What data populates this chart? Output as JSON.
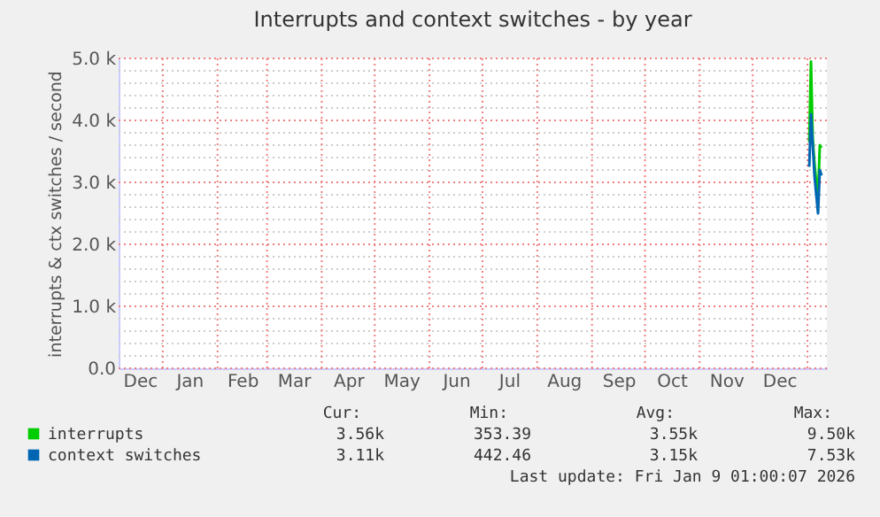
{
  "chart_data": {
    "type": "line",
    "title": "Interrupts and context switches - by year",
    "ylabel": "interrupts & ctx switches / second",
    "x": [
      "2026-01-02",
      "2026-01-03",
      "2026-01-04",
      "2026-01-05",
      "2026-01-06",
      "2026-01-07",
      "2026-01-08",
      "2026-01-09"
    ],
    "series": [
      {
        "name": "interrupts",
        "color": "#00cc00",
        "values": [
          3650,
          4950,
          3700,
          3300,
          3000,
          2800,
          3600,
          3560
        ]
      },
      {
        "name": "context switches",
        "color": "#0066b3",
        "values": [
          3250,
          4100,
          3600,
          3100,
          2800,
          2500,
          3200,
          3110
        ]
      }
    ],
    "xlim": [
      "2024-12-07",
      "2026-01-12"
    ],
    "xticks": [
      {
        "value": "2024-12-19",
        "label": "Dec"
      },
      {
        "value": "2025-01-01",
        "label": null
      },
      {
        "value": "2025-01-16",
        "label": "Jan"
      },
      {
        "value": "2025-02-01",
        "label": null
      },
      {
        "value": "2025-02-15",
        "label": "Feb"
      },
      {
        "value": "2025-03-01",
        "label": null
      },
      {
        "value": "2025-03-16",
        "label": "Mar"
      },
      {
        "value": "2025-04-01",
        "label": null
      },
      {
        "value": "2025-04-16",
        "label": "Apr"
      },
      {
        "value": "2025-05-01",
        "label": null
      },
      {
        "value": "2025-05-16",
        "label": "May"
      },
      {
        "value": "2025-06-01",
        "label": null
      },
      {
        "value": "2025-06-16",
        "label": "Jun"
      },
      {
        "value": "2025-07-01",
        "label": null
      },
      {
        "value": "2025-07-16",
        "label": "Jul"
      },
      {
        "value": "2025-08-01",
        "label": null
      },
      {
        "value": "2025-08-16",
        "label": "Aug"
      },
      {
        "value": "2025-09-01",
        "label": null
      },
      {
        "value": "2025-09-16",
        "label": "Sep"
      },
      {
        "value": "2025-10-01",
        "label": null
      },
      {
        "value": "2025-10-16",
        "label": "Oct"
      },
      {
        "value": "2025-11-01",
        "label": null
      },
      {
        "value": "2025-11-16",
        "label": "Nov"
      },
      {
        "value": "2025-12-01",
        "label": null
      },
      {
        "value": "2025-12-16",
        "label": "Dec"
      },
      {
        "value": "2026-01-01",
        "label": null
      }
    ],
    "ylim": [
      0,
      5000
    ],
    "yticks": [
      {
        "value": 0,
        "label": "0.0"
      },
      {
        "value": 200,
        "label": null
      },
      {
        "value": 400,
        "label": null
      },
      {
        "value": 600,
        "label": null
      },
      {
        "value": 800,
        "label": null
      },
      {
        "value": 1000,
        "label": "1.0 k"
      },
      {
        "value": 1200,
        "label": null
      },
      {
        "value": 1400,
        "label": null
      },
      {
        "value": 1600,
        "label": null
      },
      {
        "value": 1800,
        "label": null
      },
      {
        "value": 2000,
        "label": "2.0 k"
      },
      {
        "value": 2200,
        "label": null
      },
      {
        "value": 2400,
        "label": null
      },
      {
        "value": 2600,
        "label": null
      },
      {
        "value": 2800,
        "label": null
      },
      {
        "value": 3000,
        "label": "3.0 k"
      },
      {
        "value": 3200,
        "label": null
      },
      {
        "value": 3400,
        "label": null
      },
      {
        "value": 3600,
        "label": null
      },
      {
        "value": 3800,
        "label": null
      },
      {
        "value": 4000,
        "label": "4.0 k"
      },
      {
        "value": 4200,
        "label": null
      },
      {
        "value": 4400,
        "label": null
      },
      {
        "value": 4600,
        "label": null
      },
      {
        "value": 4800,
        "label": null
      },
      {
        "value": 5000,
        "label": "5.0 k"
      }
    ],
    "grid": true,
    "legend": "bottom",
    "marker": "none",
    "line_style": "solid",
    "annotations": [
      "Cur:",
      "Min:",
      "Avg:",
      "Max:",
      "3.56k",
      "353.39",
      "3.55k",
      "9.50k",
      "3.11k",
      "442.46",
      "3.15k",
      "7.53k",
      "Last update: Fri Jan  9 01:00:07 2026"
    ]
  }
}
